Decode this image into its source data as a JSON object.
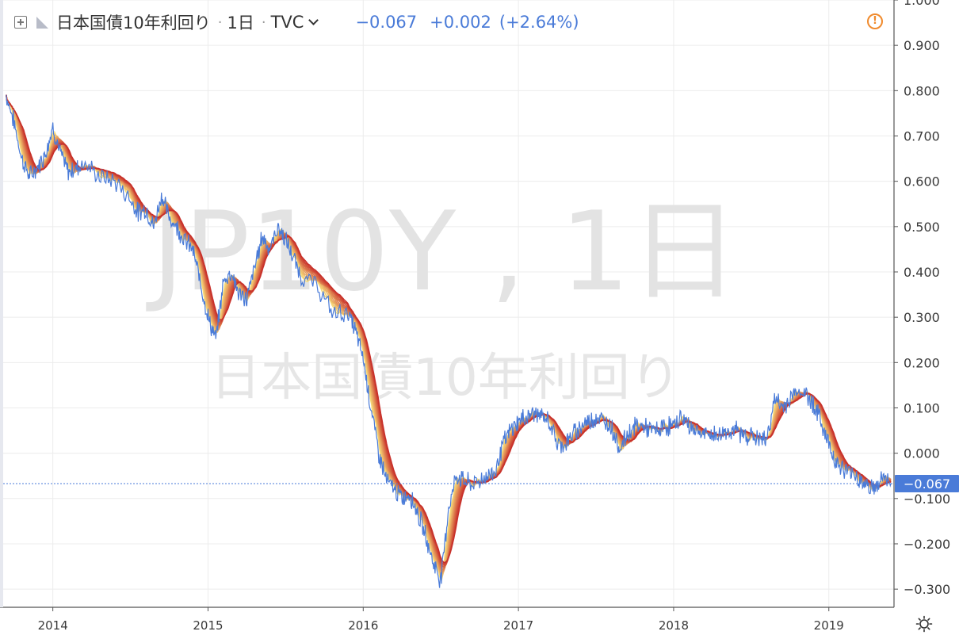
{
  "header": {
    "title": "日本国債10年利回り",
    "interval": "1日",
    "source": "TVC",
    "last_value": "−0.067",
    "change": "+0.002",
    "change_pct": "(+2.64%)"
  },
  "watermark": {
    "symbol": "JP10Y , 1日",
    "name": "日本国債10年利回り"
  },
  "price_label": "−0.067",
  "colors": {
    "price_line": "#4a7bd8",
    "ribbon_fast": "#f7dc7a",
    "ribbon_slow": "#c8302a",
    "grid": "#ececec",
    "last_price_bg": "#4a7bd8",
    "alert": "#f08a2c"
  },
  "chart_data": {
    "type": "line",
    "title": "日本国債10年利回り",
    "xlabel": "",
    "ylabel": "",
    "ylim": [
      -0.34,
      1.0
    ],
    "grid": true,
    "y_ticks": [
      "1.000",
      "0.900",
      "0.800",
      "0.700",
      "0.600",
      "0.500",
      "0.400",
      "0.300",
      "0.200",
      "0.100",
      "0.000",
      "−0.100",
      "−0.200",
      "−0.300"
    ],
    "x_ticks": [
      "2014",
      "2015",
      "2016",
      "2017",
      "2018",
      "2019"
    ],
    "last_value": -0.067,
    "series": [
      {
        "type": "line",
        "x": [
          2013.7,
          2013.75,
          2013.8,
          2013.85,
          2013.9,
          2013.95,
          2014.0,
          2014.05,
          2014.1,
          2014.15,
          2014.2,
          2014.3,
          2014.4,
          2014.5,
          2014.55,
          2014.6,
          2014.65,
          2014.7,
          2014.75,
          2014.8,
          2014.85,
          2014.9,
          2014.95,
          2015.0,
          2015.05,
          2015.1,
          2015.15,
          2015.2,
          2015.25,
          2015.3,
          2015.35,
          2015.4,
          2015.45,
          2015.5,
          2015.55,
          2015.6,
          2015.7,
          2015.8,
          2015.9,
          2015.95,
          2016.0,
          2016.05,
          2016.1,
          2016.15,
          2016.2,
          2016.25,
          2016.3,
          2016.35,
          2016.4,
          2016.45,
          2016.5,
          2016.55,
          2016.6,
          2016.65,
          2016.7,
          2016.75,
          2016.8,
          2016.85,
          2016.9,
          2016.95,
          2017.0,
          2017.05,
          2017.1,
          2017.15,
          2017.2,
          2017.25,
          2017.3,
          2017.35,
          2017.4,
          2017.45,
          2017.5,
          2017.55,
          2017.6,
          2017.65,
          2017.7,
          2017.75,
          2017.8,
          2017.85,
          2017.9,
          2017.95,
          2018.0,
          2018.05,
          2018.1,
          2018.15,
          2018.2,
          2018.25,
          2018.3,
          2018.35,
          2018.4,
          2018.45,
          2018.5,
          2018.55,
          2018.6,
          2018.65,
          2018.7,
          2018.75,
          2018.8,
          2018.85,
          2018.9,
          2018.95,
          2019.0,
          2019.05,
          2019.1,
          2019.15,
          2019.2,
          2019.25,
          2019.3,
          2019.35,
          2019.4
        ],
        "values": [
          0.79,
          0.73,
          0.65,
          0.61,
          0.63,
          0.66,
          0.72,
          0.66,
          0.62,
          0.63,
          0.64,
          0.61,
          0.6,
          0.56,
          0.53,
          0.54,
          0.5,
          0.57,
          0.52,
          0.5,
          0.47,
          0.45,
          0.38,
          0.3,
          0.25,
          0.38,
          0.4,
          0.35,
          0.34,
          0.41,
          0.48,
          0.45,
          0.5,
          0.47,
          0.43,
          0.39,
          0.37,
          0.31,
          0.31,
          0.27,
          0.21,
          0.1,
          0.0,
          -0.06,
          -0.08,
          -0.1,
          -0.09,
          -0.13,
          -0.18,
          -0.24,
          -0.28,
          -0.12,
          -0.05,
          -0.06,
          -0.07,
          -0.06,
          -0.05,
          -0.04,
          0.02,
          0.05,
          0.07,
          0.08,
          0.09,
          0.08,
          0.07,
          0.02,
          0.02,
          0.04,
          0.06,
          0.07,
          0.08,
          0.07,
          0.06,
          0.01,
          0.04,
          0.06,
          0.06,
          0.05,
          0.05,
          0.06,
          0.06,
          0.08,
          0.06,
          0.05,
          0.04,
          0.04,
          0.04,
          0.05,
          0.05,
          0.04,
          0.04,
          0.03,
          0.03,
          0.12,
          0.1,
          0.12,
          0.14,
          0.13,
          0.11,
          0.07,
          0.02,
          -0.02,
          -0.04,
          -0.04,
          -0.06,
          -0.07,
          -0.08,
          -0.05,
          -0.067
        ]
      }
    ]
  }
}
